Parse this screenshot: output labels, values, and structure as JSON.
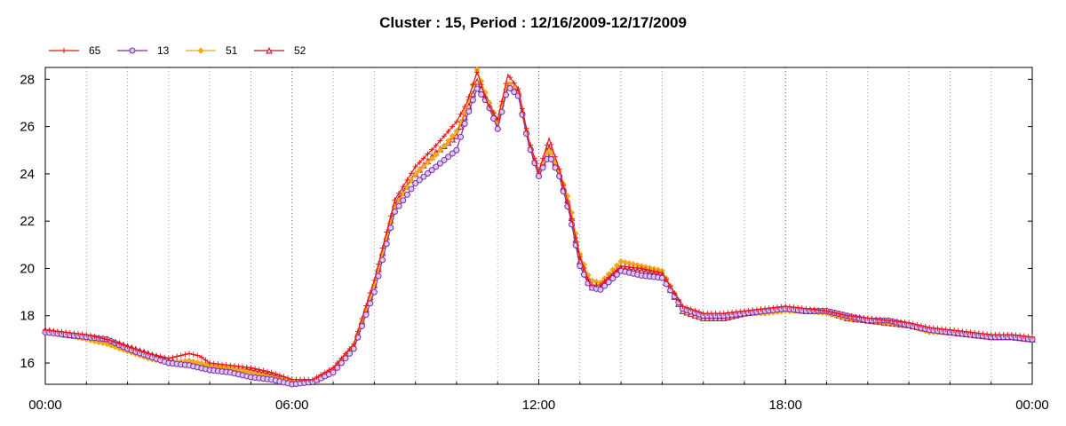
{
  "chart_data": {
    "type": "line",
    "title": "Cluster : 15, Period : 12/16/2009-12/17/2009",
    "xlabel": "",
    "ylabel": "",
    "x_unit": "hours since 00:00",
    "xlim": [
      0,
      24
    ],
    "ylim": [
      15.1,
      28.5
    ],
    "x_ticks": [
      0,
      6,
      12,
      18,
      24
    ],
    "x_tick_labels": [
      "00:00",
      "06:00",
      "12:00",
      "18:00",
      "00:00"
    ],
    "y_ticks": [
      16,
      18,
      20,
      22,
      24,
      26,
      28
    ],
    "y_tick_labels": [
      "16",
      "18",
      "20",
      "22",
      "24",
      "26",
      "28"
    ],
    "grid": "vertical dotted every hour",
    "legend_position": "top-left",
    "series": [
      {
        "name": "65",
        "color": "#e8141a",
        "marker": "plus",
        "x": [
          0,
          0.5,
          1,
          1.5,
          2,
          2.5,
          3,
          3.5,
          3.75,
          4,
          4.5,
          5,
          5.5,
          6,
          6.5,
          7,
          7.5,
          8,
          8.5,
          9,
          9.5,
          10,
          10.25,
          10.5,
          10.75,
          11,
          11.25,
          11.5,
          11.75,
          12,
          12.25,
          12.5,
          12.75,
          13,
          13.25,
          13.5,
          14,
          14.5,
          15,
          15.5,
          16,
          16.5,
          17,
          17.5,
          18,
          18.5,
          19,
          19.5,
          20,
          20.5,
          21,
          21.5,
          22,
          22.5,
          23,
          23.5,
          24
        ],
        "y": [
          17.4,
          17.3,
          17.2,
          17.0,
          16.7,
          16.4,
          16.2,
          16.4,
          16.3,
          16.0,
          15.9,
          15.8,
          15.6,
          15.3,
          15.3,
          15.8,
          16.8,
          19.5,
          22.9,
          24.3,
          25.2,
          26.2,
          27.0,
          28.3,
          27.0,
          26.3,
          28.2,
          27.6,
          25.5,
          24.1,
          25.5,
          24.2,
          22.5,
          20.5,
          19.3,
          19.3,
          20.1,
          20.0,
          19.8,
          18.4,
          18.1,
          18.1,
          18.2,
          18.3,
          18.4,
          18.3,
          18.2,
          18.0,
          17.9,
          17.8,
          17.7,
          17.5,
          17.4,
          17.3,
          17.2,
          17.2,
          17.1
        ]
      },
      {
        "name": "13",
        "color": "#7d2aa8",
        "marker": "circle",
        "x": [
          0,
          0.5,
          1,
          1.5,
          2,
          2.5,
          3,
          3.5,
          3.75,
          4,
          4.5,
          5,
          5.5,
          6,
          6.5,
          7,
          7.5,
          8,
          8.5,
          9,
          9.5,
          10,
          10.25,
          10.5,
          10.75,
          11,
          11.25,
          11.5,
          11.75,
          12,
          12.25,
          12.5,
          12.75,
          13,
          13.25,
          13.5,
          14,
          14.5,
          15,
          15.5,
          16,
          16.5,
          17,
          17.5,
          18,
          18.5,
          19,
          19.5,
          20,
          20.5,
          21,
          21.5,
          22,
          22.5,
          23,
          23.5,
          24
        ],
        "y": [
          17.3,
          17.2,
          17.1,
          17.0,
          16.6,
          16.3,
          16.0,
          15.9,
          15.8,
          15.7,
          15.6,
          15.4,
          15.3,
          15.1,
          15.2,
          15.6,
          16.6,
          19.0,
          22.4,
          23.6,
          24.3,
          25.0,
          26.4,
          27.6,
          27.0,
          25.9,
          27.7,
          27.3,
          25.3,
          23.9,
          24.8,
          23.9,
          22.3,
          20.1,
          19.2,
          19.1,
          19.9,
          19.7,
          19.6,
          18.3,
          18.0,
          18.0,
          18.1,
          18.2,
          18.3,
          18.2,
          18.2,
          18.0,
          17.8,
          17.8,
          17.6,
          17.4,
          17.3,
          17.2,
          17.1,
          17.1,
          17.0
        ]
      },
      {
        "name": "51",
        "color": "#f2a81f",
        "marker": "diamond",
        "x": [
          0,
          0.5,
          1,
          1.5,
          2,
          2.5,
          3,
          3.5,
          3.75,
          4,
          4.5,
          5,
          5.5,
          6,
          6.5,
          7,
          7.5,
          8,
          8.5,
          9,
          9.5,
          10,
          10.25,
          10.5,
          10.75,
          11,
          11.25,
          11.5,
          11.75,
          12,
          12.25,
          12.5,
          12.75,
          13,
          13.25,
          13.5,
          14,
          14.5,
          15,
          15.5,
          16,
          16.5,
          17,
          17.5,
          18,
          18.5,
          19,
          19.5,
          20,
          20.5,
          21,
          21.5,
          22,
          22.5,
          23,
          23.5,
          24
        ],
        "y": [
          17.3,
          17.2,
          17.0,
          16.8,
          16.5,
          16.2,
          16.0,
          16.1,
          16.0,
          15.9,
          15.8,
          15.6,
          15.4,
          15.2,
          15.2,
          15.7,
          16.7,
          19.3,
          22.6,
          24.0,
          24.8,
          25.8,
          26.8,
          28.4,
          27.2,
          26.2,
          27.9,
          27.4,
          25.4,
          24.0,
          25.1,
          24.1,
          22.8,
          20.6,
          19.5,
          19.4,
          20.3,
          20.1,
          19.9,
          18.3,
          18.0,
          18.0,
          18.1,
          18.1,
          18.2,
          18.2,
          18.1,
          17.9,
          17.8,
          17.7,
          17.6,
          17.3,
          17.3,
          17.2,
          17.1,
          17.1,
          17.0
        ]
      },
      {
        "name": "52",
        "color": "#b5182b",
        "marker": "triangle",
        "x": [
          0,
          0.5,
          1,
          1.5,
          2,
          2.5,
          3,
          3.5,
          3.75,
          4,
          4.5,
          5,
          5.5,
          6,
          6.5,
          7,
          7.5,
          8,
          8.5,
          9,
          9.5,
          10,
          10.25,
          10.5,
          10.75,
          11,
          11.25,
          11.5,
          11.75,
          12,
          12.25,
          12.5,
          12.75,
          13,
          13.25,
          13.5,
          14,
          14.5,
          15,
          15.5,
          16,
          16.5,
          17,
          17.5,
          18,
          18.5,
          19,
          19.5,
          20,
          20.5,
          21,
          21.5,
          22,
          22.5,
          23,
          23.5,
          24
        ],
        "y": [
          17.4,
          17.2,
          17.1,
          17.0,
          16.7,
          16.4,
          16.1,
          16.0,
          15.9,
          15.9,
          15.8,
          15.7,
          15.5,
          15.2,
          15.2,
          15.7,
          16.7,
          19.3,
          22.7,
          24.0,
          24.9,
          25.6,
          26.6,
          27.9,
          27.1,
          26.0,
          27.8,
          27.5,
          25.4,
          24.0,
          25.2,
          24.0,
          22.6,
          20.3,
          19.2,
          19.2,
          20.0,
          19.9,
          19.7,
          18.2,
          17.9,
          17.9,
          18.1,
          18.2,
          18.3,
          18.2,
          18.2,
          17.9,
          17.8,
          17.7,
          17.6,
          17.4,
          17.3,
          17.2,
          17.1,
          17.1,
          17.0
        ]
      }
    ]
  }
}
